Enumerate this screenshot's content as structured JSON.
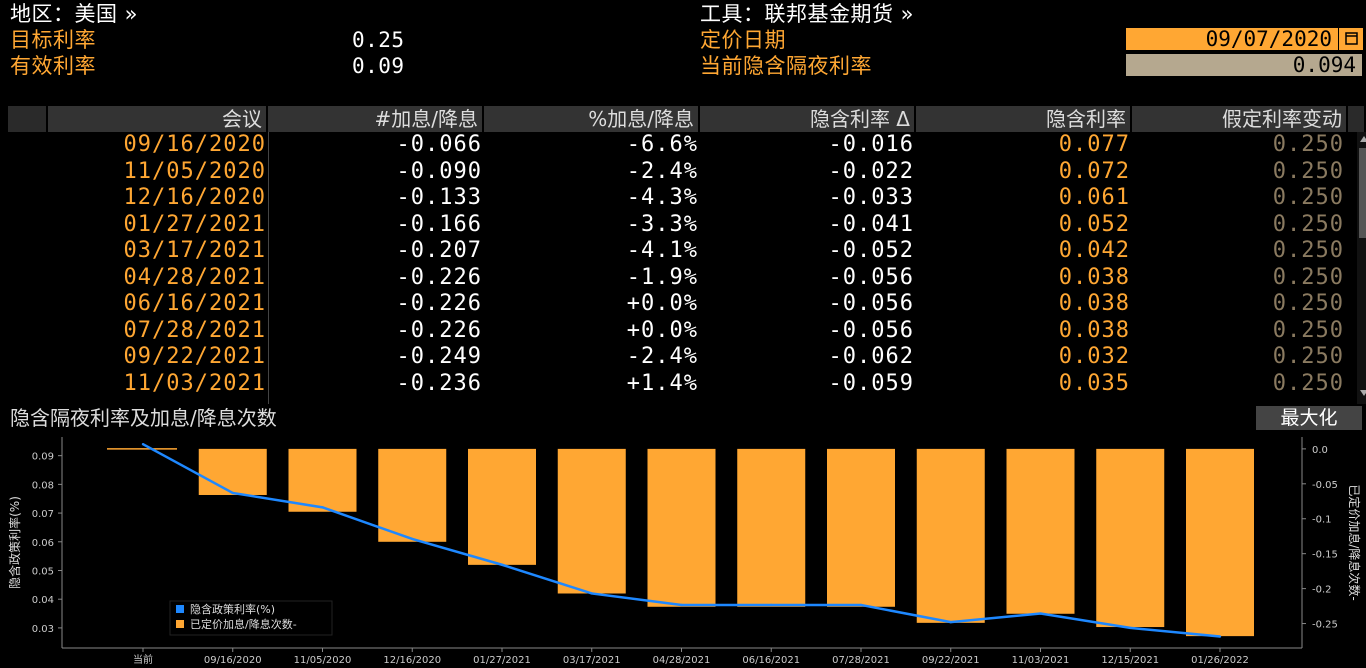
{
  "header": {
    "region_label": "地区：美国 »",
    "target_rate_label": "目标利率",
    "target_rate_value": "0.25",
    "effective_rate_label": "有效利率",
    "effective_rate_value": "0.09",
    "instrument_label": "工具：联邦基金期货 »",
    "pricing_date_label": "定价日期",
    "pricing_date_value": "09/07/2020",
    "implied_overnight_label": "当前隐含隔夜利率",
    "implied_overnight_value": "0.094"
  },
  "table": {
    "columns": [
      "会议",
      "#加息/降息",
      "%加息/降息",
      "隐含利率 Δ",
      "隐含利率",
      "假定利率变动"
    ],
    "rows": [
      [
        "09/16/2020",
        "-0.066",
        "-6.6%",
        "-0.016",
        "0.077",
        "0.250"
      ],
      [
        "11/05/2020",
        "-0.090",
        "-2.4%",
        "-0.022",
        "0.072",
        "0.250"
      ],
      [
        "12/16/2020",
        "-0.133",
        "-4.3%",
        "-0.033",
        "0.061",
        "0.250"
      ],
      [
        "01/27/2021",
        "-0.166",
        "-3.3%",
        "-0.041",
        "0.052",
        "0.250"
      ],
      [
        "03/17/2021",
        "-0.207",
        "-4.1%",
        "-0.052",
        "0.042",
        "0.250"
      ],
      [
        "04/28/2021",
        "-0.226",
        "-1.9%",
        "-0.056",
        "0.038",
        "0.250"
      ],
      [
        "06/16/2021",
        "-0.226",
        "+0.0%",
        "-0.056",
        "0.038",
        "0.250"
      ],
      [
        "07/28/2021",
        "-0.226",
        "+0.0%",
        "-0.056",
        "0.038",
        "0.250"
      ],
      [
        "09/22/2021",
        "-0.249",
        "-2.4%",
        "-0.062",
        "0.032",
        "0.250"
      ],
      [
        "11/03/2021",
        "-0.236",
        "+1.4%",
        "-0.059",
        "0.035",
        "0.250"
      ]
    ]
  },
  "chart_panel": {
    "title": "隐含隔夜利率及加息/降息次数",
    "maximize_label": "最大化"
  },
  "chart_data": {
    "type": "bar",
    "categories": [
      "当前",
      "09/16/2020",
      "11/05/2020",
      "12/16/2020",
      "01/27/2021",
      "03/17/2021",
      "04/28/2021",
      "06/16/2021",
      "07/28/2021",
      "09/22/2021",
      "11/03/2021",
      "12/15/2021",
      "01/26/2022"
    ],
    "series": [
      {
        "name": "隐含政策利率(%)",
        "type": "line",
        "axis": "left",
        "color": "#1e88ff",
        "values": [
          0.094,
          0.077,
          0.072,
          0.061,
          0.052,
          0.042,
          0.038,
          0.038,
          0.038,
          0.032,
          0.035,
          0.03,
          0.027
        ]
      },
      {
        "name": "已定价加息/降息次数-",
        "type": "bar",
        "axis": "right",
        "color": "#ffa733",
        "values": [
          0,
          -0.066,
          -0.09,
          -0.133,
          -0.166,
          -0.207,
          -0.226,
          -0.226,
          -0.226,
          -0.249,
          -0.236,
          -0.255,
          -0.268
        ]
      }
    ],
    "ylabel": "隐含政策利率(%)",
    "y2label": "已定价加息/降息次数-",
    "ylim": [
      0.023,
      0.0965
    ],
    "y2lim": [
      -0.285,
      0.017
    ],
    "yticks": [
      0.03,
      0.04,
      0.05,
      0.06,
      0.07,
      0.08,
      0.09
    ],
    "y2ticks": [
      0.0,
      -0.05,
      -0.1,
      -0.15,
      -0.2,
      -0.25
    ],
    "y2ticklabels": [
      "0.0",
      "-0.05",
      "-0.1",
      "-0.15",
      "-0.2",
      "-0.25"
    ],
    "legend_position": "bottom-left",
    "grid": false
  }
}
